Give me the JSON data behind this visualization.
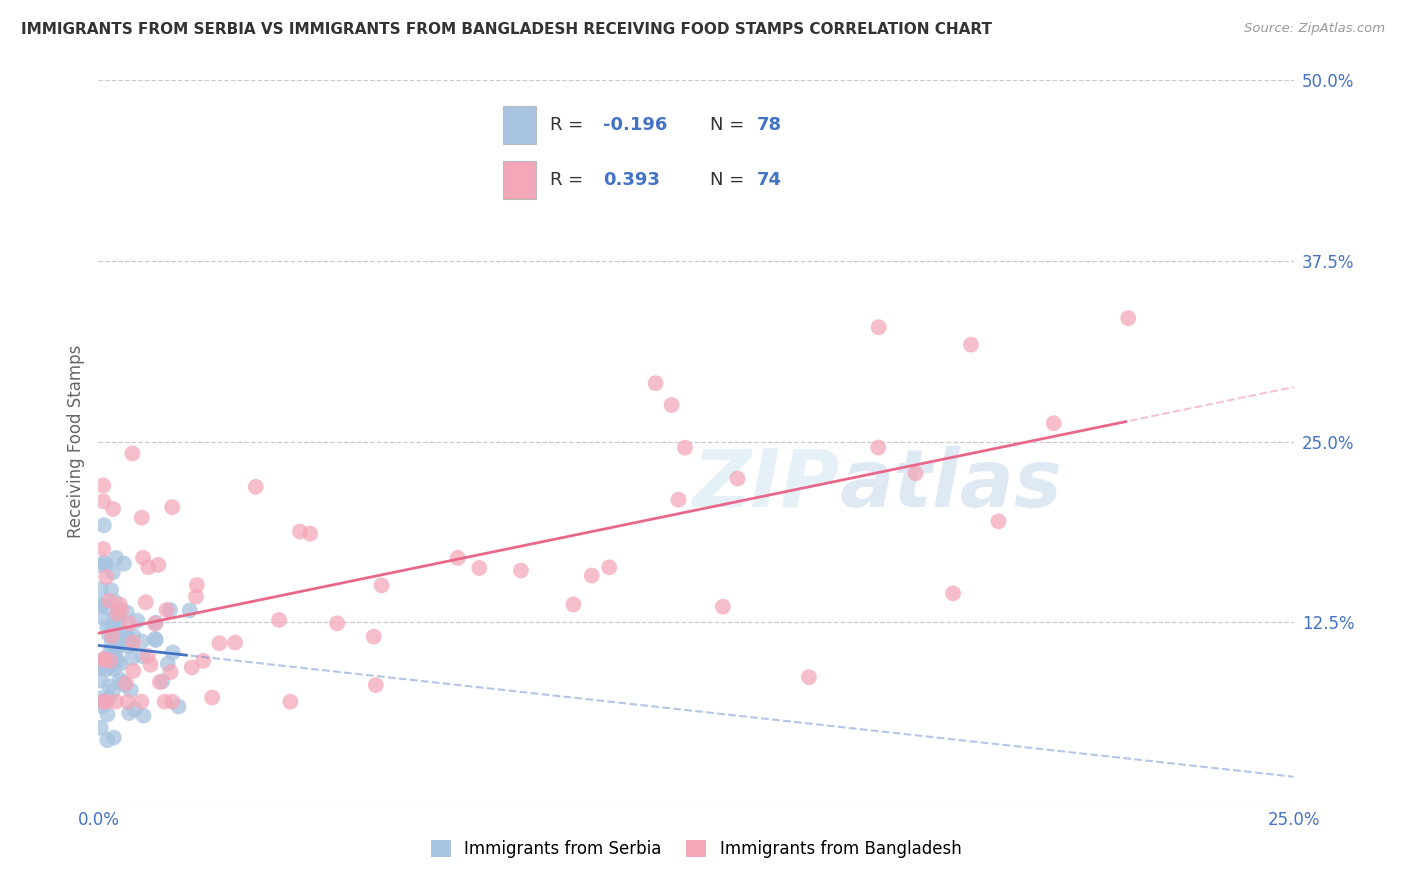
{
  "title": "IMMIGRANTS FROM SERBIA VS IMMIGRANTS FROM BANGLADESH RECEIVING FOOD STAMPS CORRELATION CHART",
  "source": "Source: ZipAtlas.com",
  "ylabel": "Receiving Food Stamps",
  "xlim": [
    0.0,
    0.25
  ],
  "ylim": [
    0.0,
    0.5
  ],
  "legend_labels": [
    "Immigrants from Serbia",
    "Immigrants from Bangladesh"
  ],
  "serbia_color": "#a8c4e0",
  "bangladesh_color": "#f4a7b9",
  "serbia_line_color": "#4472c4",
  "bangladesh_line_color": "#e8688a",
  "R_serbia": -0.196,
  "N_serbia": 78,
  "R_bangladesh": 0.393,
  "N_bangladesh": 74,
  "watermark": "ZIPatlas"
}
